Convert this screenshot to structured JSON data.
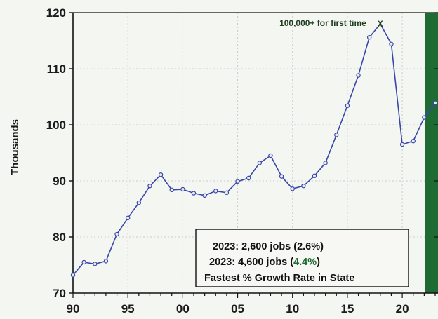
{
  "chart_data": {
    "type": "line",
    "ylabel": "Thousands",
    "xlim": [
      1990,
      2023
    ],
    "ylim": [
      70,
      120
    ],
    "y_ticks": [
      "70",
      "80",
      "90",
      "100",
      "110",
      "120"
    ],
    "x_ticks": [
      "90",
      "95",
      "00",
      "05",
      "10",
      "15",
      "20"
    ],
    "grid": true,
    "x": [
      1990,
      1991,
      1992,
      1993,
      1994,
      1995,
      1996,
      1997,
      1998,
      1999,
      2000,
      2001,
      2002,
      2003,
      2004,
      2005,
      2006,
      2007,
      2008,
      2009,
      2010,
      2011,
      2012,
      2013,
      2014,
      2015,
      2016,
      2017,
      2018,
      2019,
      2020,
      2021,
      2022,
      2023
    ],
    "values": [
      73.2,
      75.5,
      75.2,
      75.7,
      80.5,
      83.4,
      86.1,
      89.1,
      91.1,
      88.4,
      88.5,
      87.8,
      87.4,
      88.2,
      87.9,
      89.9,
      90.5,
      93.2,
      94.5,
      90.8,
      88.6,
      89.1,
      90.9,
      93.2,
      98.2,
      103.4,
      108.8,
      115.6,
      118.0,
      114.4,
      96.5,
      97.1,
      101.3,
      103.9
    ],
    "shaded_region": {
      "from": 2022.1,
      "to": 2023.5,
      "color": "#1e6b34"
    },
    "annotation": {
      "text": "100,000+ for first time",
      "marker": "X",
      "x": 2018,
      "y": 118.0
    },
    "info_box": {
      "lines": [
        "2023: 2,600 jobs (2.6%)",
        "2023: 4,600 jobs (4.4%)",
        "Fastest % Growth Rate in State"
      ],
      "highlight": "4.4%",
      "highlight_color": "#1e6b34"
    },
    "colors": {
      "line": "#3a47a8",
      "marker_fill": "#e8ecf6"
    }
  }
}
